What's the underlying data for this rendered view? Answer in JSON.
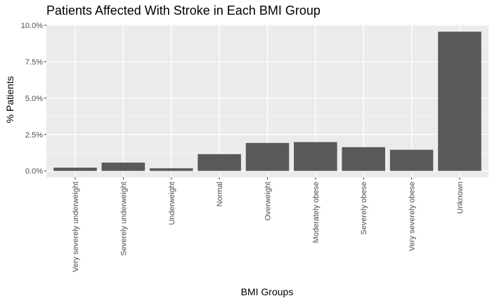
{
  "chart_data": {
    "type": "bar",
    "title": "Patients Affected With Stroke in Each BMI Group",
    "xlabel": "BMI Groups",
    "ylabel": "% Patients",
    "categories": [
      "Very severely underweight",
      "Severely underweight",
      "Underweight",
      "Normal",
      "Overweight",
      "Moderately obese",
      "Severely obese",
      "Very severely obese",
      "Unknown"
    ],
    "values": [
      0.22,
      0.57,
      0.18,
      1.15,
      1.92,
      1.98,
      1.63,
      1.45,
      9.56
    ],
    "unit": "%",
    "ylim": [
      -0.45,
      10.05
    ],
    "yticks": [
      0,
      2.5,
      5,
      7.5,
      10
    ],
    "ytick_labels": [
      "0.0%",
      "2.5%",
      "5.0%",
      "7.5%",
      "10.0%"
    ],
    "grid": true,
    "colors": {
      "bar": "#595959",
      "panel": "#ebebeb",
      "grid_major": "#ffffff",
      "grid_minor": "#f5f5f5",
      "tick_text": "#4d4d4d",
      "tick_mark": "#333333"
    }
  }
}
